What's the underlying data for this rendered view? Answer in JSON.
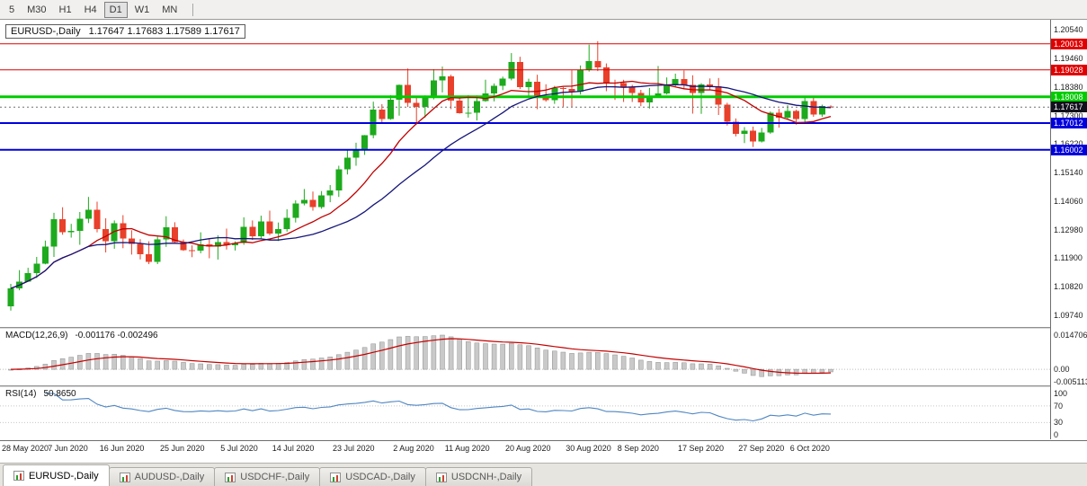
{
  "toolbar": {
    "timeframes": [
      {
        "label": "5",
        "active": false
      },
      {
        "label": "M30",
        "active": false
      },
      {
        "label": "H1",
        "active": false
      },
      {
        "label": "H4",
        "active": false
      },
      {
        "label": "D1",
        "active": true
      },
      {
        "label": "W1",
        "active": false
      },
      {
        "label": "MN",
        "active": false
      }
    ]
  },
  "tabs": [
    {
      "label": "EURUSD-,Daily",
      "active": true
    },
    {
      "label": "AUDUSD-,Daily",
      "active": false
    },
    {
      "label": "USDCHF-,Daily",
      "active": false
    },
    {
      "label": "USDCAD-,Daily",
      "active": false
    },
    {
      "label": "USDCNH-,Daily",
      "active": false
    }
  ],
  "chart_data": {
    "type": "candlestick",
    "title": "EURUSD-,Daily",
    "ohlc_text": "1.17647 1.17683 1.17589 1.17617",
    "colors": {
      "up": "#1daa1d",
      "down": "#e8402a",
      "ma_fast": "#c00000",
      "ma_slow": "#15157a",
      "level_red": "#e00000",
      "level_green": "#00cc00",
      "level_blue": "#0000dd",
      "macd_hist": "#c9c9c9",
      "macd_hist_border": "#8f8f8f",
      "macd_signal": "#c40000",
      "rsi": "#4f86c2"
    },
    "price_range": [
      1.093,
      1.2092
    ],
    "price_axis_ticks": [
      "1.20540",
      "1.19460",
      "1.18380",
      "1.17300",
      "1.16220",
      "1.15140",
      "1.14060",
      "1.12980",
      "1.11900",
      "1.10820",
      "1.09740"
    ],
    "levels": [
      {
        "value": 1.20013,
        "label": "1.20013",
        "color": "#e00000",
        "width": 1
      },
      {
        "value": 1.19028,
        "label": "1.19028",
        "color": "#e00000",
        "width": 1
      },
      {
        "value": 1.18008,
        "label": "1.18008",
        "color": "#00cc00",
        "width": 3
      },
      {
        "value": 1.17012,
        "label": "1.17012",
        "color": "#0000dd",
        "width": 2
      },
      {
        "value": 1.16002,
        "label": "1.16002",
        "color": "#0000dd",
        "width": 2
      }
    ],
    "current_price": {
      "value": 1.17617,
      "label": "1.17617",
      "bg": "#10101c"
    },
    "x_ticks": [
      {
        "label": "28 May 2020",
        "index": 0
      },
      {
        "label": "7 Jun 2020",
        "index": 7
      },
      {
        "label": "16 Jun 2020",
        "index": 13
      },
      {
        "label": "25 Jun 2020",
        "index": 20
      },
      {
        "label": "5 Jul 2020",
        "index": 27
      },
      {
        "label": "14 Jul 2020",
        "index": 33
      },
      {
        "label": "23 Jul 2020",
        "index": 40
      },
      {
        "label": "2 Aug 2020",
        "index": 47
      },
      {
        "label": "11 Aug 2020",
        "index": 53
      },
      {
        "label": "20 Aug 2020",
        "index": 60
      },
      {
        "label": "30 Aug 2020",
        "index": 67
      },
      {
        "label": "8 Sep 2020",
        "index": 73
      },
      {
        "label": "17 Sep 2020",
        "index": 80
      },
      {
        "label": "27 Sep 2020",
        "index": 87
      },
      {
        "label": "6 Oct 2020",
        "index": 93
      }
    ],
    "candles": [
      [
        1.1008,
        1.1093,
        1.0992,
        1.1076
      ],
      [
        1.1076,
        1.1145,
        1.1069,
        1.1101
      ],
      [
        1.1101,
        1.1154,
        1.1101,
        1.1134
      ],
      [
        1.1134,
        1.1195,
        1.1115,
        1.117
      ],
      [
        1.117,
        1.1257,
        1.1167,
        1.1234
      ],
      [
        1.1234,
        1.1362,
        1.1195,
        1.1337
      ],
      [
        1.1337,
        1.1383,
        1.1279,
        1.1289
      ],
      [
        1.1289,
        1.132,
        1.1268,
        1.1294
      ],
      [
        1.1294,
        1.1365,
        1.1241,
        1.134
      ],
      [
        1.134,
        1.1422,
        1.1323,
        1.1373
      ],
      [
        1.1373,
        1.1404,
        1.1288,
        1.1301
      ],
      [
        1.1301,
        1.1341,
        1.1212,
        1.1255
      ],
      [
        1.1255,
        1.1333,
        1.1226,
        1.1323
      ],
      [
        1.1323,
        1.1353,
        1.1228,
        1.1264
      ],
      [
        1.1264,
        1.1296,
        1.1204,
        1.1244
      ],
      [
        1.1244,
        1.1262,
        1.1186,
        1.1205
      ],
      [
        1.1205,
        1.1254,
        1.1168,
        1.1177
      ],
      [
        1.1177,
        1.1271,
        1.1168,
        1.1261
      ],
      [
        1.1261,
        1.1349,
        1.1233,
        1.1307
      ],
      [
        1.1307,
        1.1326,
        1.1248,
        1.1251
      ],
      [
        1.1251,
        1.1261,
        1.1218,
        1.122
      ],
      [
        1.122,
        1.1239,
        1.1194,
        1.1219
      ],
      [
        1.1219,
        1.1288,
        1.1209,
        1.1243
      ],
      [
        1.1243,
        1.1262,
        1.119,
        1.1234
      ],
      [
        1.1234,
        1.1277,
        1.1185,
        1.1251
      ],
      [
        1.1251,
        1.1302,
        1.1223,
        1.1239
      ],
      [
        1.1239,
        1.1254,
        1.1219,
        1.1248
      ],
      [
        1.1248,
        1.1345,
        1.1241,
        1.1309
      ],
      [
        1.1309,
        1.1333,
        1.1259,
        1.1274
      ],
      [
        1.1274,
        1.1351,
        1.1265,
        1.133
      ],
      [
        1.133,
        1.137,
        1.1277,
        1.1284
      ],
      [
        1.1284,
        1.1325,
        1.1255,
        1.13
      ],
      [
        1.13,
        1.1375,
        1.1291,
        1.1343
      ],
      [
        1.1343,
        1.1409,
        1.1325,
        1.1397
      ],
      [
        1.1397,
        1.1452,
        1.139,
        1.141
      ],
      [
        1.141,
        1.1442,
        1.137,
        1.1383
      ],
      [
        1.1383,
        1.1444,
        1.1377,
        1.1427
      ],
      [
        1.1427,
        1.1467,
        1.1402,
        1.1447
      ],
      [
        1.1447,
        1.154,
        1.1422,
        1.1527
      ],
      [
        1.1527,
        1.1601,
        1.1507,
        1.157
      ],
      [
        1.157,
        1.1627,
        1.154,
        1.1597
      ],
      [
        1.1597,
        1.1656,
        1.1581,
        1.1655
      ],
      [
        1.1655,
        1.1782,
        1.1644,
        1.1752
      ],
      [
        1.1752,
        1.1773,
        1.17,
        1.1716
      ],
      [
        1.1716,
        1.1807,
        1.1714,
        1.179
      ],
      [
        1.179,
        1.1847,
        1.1729,
        1.1846
      ],
      [
        1.1846,
        1.1908,
        1.1762,
        1.1778
      ],
      [
        1.1778,
        1.1797,
        1.1696,
        1.1762
      ],
      [
        1.1762,
        1.1806,
        1.1722,
        1.1802
      ],
      [
        1.1802,
        1.1905,
        1.1791,
        1.1862
      ],
      [
        1.1862,
        1.1915,
        1.1817,
        1.1878
      ],
      [
        1.1878,
        1.1884,
        1.1754,
        1.1787
      ],
      [
        1.1787,
        1.1805,
        1.1737,
        1.1738
      ],
      [
        1.1738,
        1.1807,
        1.1722,
        1.174
      ],
      [
        1.174,
        1.1806,
        1.1711,
        1.1784
      ],
      [
        1.1784,
        1.1865,
        1.1782,
        1.1813
      ],
      [
        1.1813,
        1.1851,
        1.1783,
        1.1842
      ],
      [
        1.1842,
        1.1877,
        1.1826,
        1.187
      ],
      [
        1.187,
        1.1966,
        1.1863,
        1.1933
      ],
      [
        1.1933,
        1.1952,
        1.183,
        1.1838
      ],
      [
        1.1838,
        1.1869,
        1.1801,
        1.1858
      ],
      [
        1.1858,
        1.1884,
        1.1754,
        1.1796
      ],
      [
        1.1796,
        1.1848,
        1.1782,
        1.1787
      ],
      [
        1.1787,
        1.1842,
        1.1774,
        1.1834
      ],
      [
        1.1834,
        1.1838,
        1.1763,
        1.183
      ],
      [
        1.183,
        1.1901,
        1.1762,
        1.182
      ],
      [
        1.182,
        1.1919,
        1.1809,
        1.1903
      ],
      [
        1.1903,
        1.1998,
        1.1896,
        1.1936
      ],
      [
        1.1936,
        1.2011,
        1.1898,
        1.1912
      ],
      [
        1.1912,
        1.1927,
        1.1822,
        1.1854
      ],
      [
        1.1854,
        1.1865,
        1.1789,
        1.1852
      ],
      [
        1.1852,
        1.1865,
        1.1781,
        1.1838
      ],
      [
        1.1838,
        1.1846,
        1.1781,
        1.1815
      ],
      [
        1.1815,
        1.1827,
        1.1765,
        1.1779
      ],
      [
        1.1779,
        1.1834,
        1.1756,
        1.1802
      ],
      [
        1.1802,
        1.1917,
        1.18,
        1.1814
      ],
      [
        1.1814,
        1.1874,
        1.1809,
        1.1845
      ],
      [
        1.1845,
        1.1888,
        1.1839,
        1.1867
      ],
      [
        1.1867,
        1.19,
        1.1829,
        1.1845
      ],
      [
        1.1845,
        1.1882,
        1.1737,
        1.1815
      ],
      [
        1.1815,
        1.1852,
        1.1736,
        1.1848
      ],
      [
        1.1848,
        1.187,
        1.1827,
        1.184
      ],
      [
        1.184,
        1.1872,
        1.1732,
        1.1771
      ],
      [
        1.1771,
        1.1778,
        1.1692,
        1.1707
      ],
      [
        1.1707,
        1.1719,
        1.1651,
        1.166
      ],
      [
        1.166,
        1.1686,
        1.1626,
        1.1672
      ],
      [
        1.1672,
        1.1688,
        1.1611,
        1.1631
      ],
      [
        1.1631,
        1.1683,
        1.1628,
        1.1665
      ],
      [
        1.1665,
        1.1745,
        1.1661,
        1.1741
      ],
      [
        1.1741,
        1.1755,
        1.1684,
        1.1721
      ],
      [
        1.1721,
        1.1769,
        1.1717,
        1.1747
      ],
      [
        1.1747,
        1.1752,
        1.1695,
        1.1716
      ],
      [
        1.1716,
        1.1798,
        1.1705,
        1.1784
      ],
      [
        1.1784,
        1.1797,
        1.1725,
        1.1733
      ],
      [
        1.1733,
        1.1771,
        1.1725,
        1.1766
      ],
      [
        1.17647,
        1.17683,
        1.17589,
        1.17617
      ]
    ],
    "indicators": {
      "macd": {
        "label": "MACD(12,26,9)",
        "values": "-0.001176 -0.002496",
        "axis_ticks": [
          {
            "label": "0.014706",
            "value": 0.014706
          },
          {
            "label": "0.00",
            "value": 0
          },
          {
            "label": "-0.005113",
            "value": -0.005113
          }
        ],
        "range": [
          -0.0068,
          0.0172
        ]
      },
      "rsi": {
        "label": "RSI(14)",
        "value": "50.8650",
        "axis_ticks": [
          {
            "label": "100",
            "value": 100
          },
          {
            "label": "70",
            "value": 70
          },
          {
            "label": "30",
            "value": 30
          },
          {
            "label": "0",
            "value": 0
          }
        ],
        "range": [
          -10,
          115
        ],
        "levels": [
          70,
          30
        ]
      }
    }
  }
}
